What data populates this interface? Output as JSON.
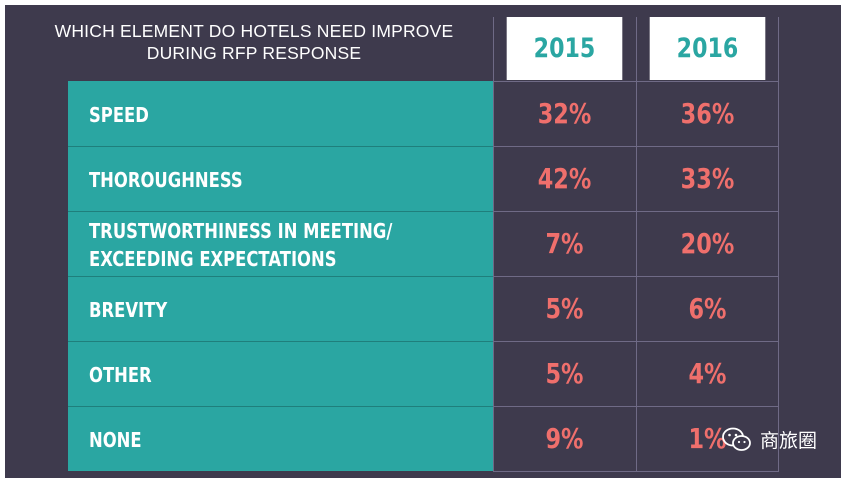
{
  "chart_data": {
    "type": "table",
    "title": "WHICH ELEMENT DO HOTELS NEED IMPROVE DURING RFP RESPONSE",
    "title_lines": [
      "WHICH ELEMENT DO HOTELS NEED IMPROVE",
      "DURING RFP RESPONSE"
    ],
    "columns": [
      "2015",
      "2016"
    ],
    "rows": [
      {
        "label_lines": [
          "SPEED"
        ],
        "values": [
          "32%",
          "36%"
        ]
      },
      {
        "label_lines": [
          "THOROUGHNESS"
        ],
        "values": [
          "42%",
          "33%"
        ]
      },
      {
        "label_lines": [
          "TRUSTWORTHINESS IN MEETING/",
          "EXCEEDING EXPECTATIONS"
        ],
        "values": [
          "7%",
          "20%"
        ]
      },
      {
        "label_lines": [
          "BREVITY"
        ],
        "values": [
          "5%",
          "6%"
        ]
      },
      {
        "label_lines": [
          "OTHER"
        ],
        "values": [
          "5%",
          "4%"
        ]
      },
      {
        "label_lines": [
          "NONE"
        ],
        "values": [
          "9%",
          "1%"
        ]
      }
    ]
  },
  "watermark": {
    "text": "商旅圈",
    "icon": "wechat-icon"
  },
  "colors": {
    "background": "#3e3a4d",
    "teal": "#2aa6a2",
    "value": "#ef6f6c",
    "header_bg": "#ffffff",
    "grid_line": "#6f6a86"
  }
}
